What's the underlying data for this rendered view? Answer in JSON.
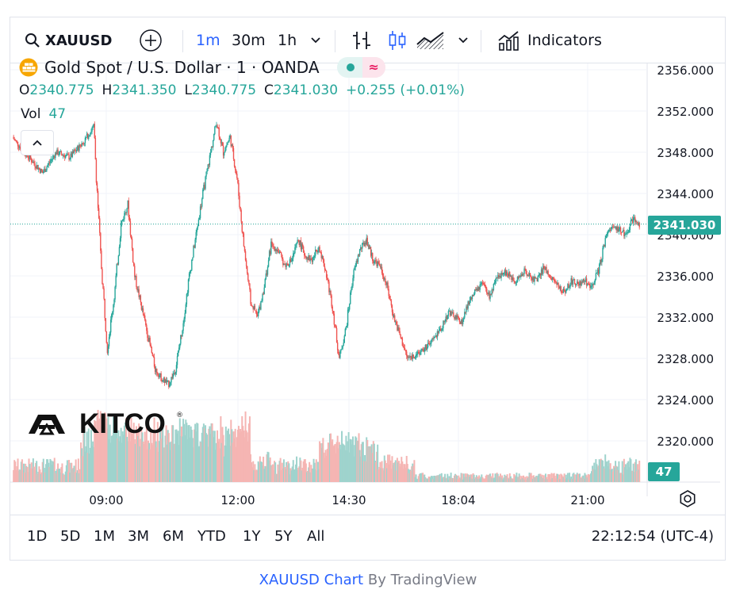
{
  "toolbar": {
    "symbol": "XAUUSD",
    "intervals": [
      "1m",
      "30m",
      "1h"
    ],
    "active_interval": "1m",
    "indicators_label": "Indicators"
  },
  "legend": {
    "title": "Gold Spot / U.S. Dollar · 1 · OANDA",
    "o_label": "O",
    "o_value": "2340.775",
    "h_label": "H",
    "h_value": "2341.350",
    "l_label": "L",
    "l_value": "2340.775",
    "c_label": "C",
    "c_value": "2341.030",
    "change": "+0.255 (+0.01%)",
    "vol_label": "Vol",
    "vol_value": "47"
  },
  "watermark": "KITCO",
  "last_price": "2341.030",
  "last_volume": "47",
  "ranges": [
    "1D",
    "5D",
    "1M",
    "3M",
    "6M",
    "YTD",
    "1Y",
    "5Y",
    "All"
  ],
  "clock": "22:12:54 (UTC-4)",
  "footer": {
    "symbol_link": "XAUUSD Chart",
    "by": "By",
    "brand": "TradingView"
  },
  "colors": {
    "up": "#26a69a",
    "down": "#ef5350",
    "accent": "#2962ff",
    "vol_up": "#9fd3cd",
    "vol_down": "#f5b5b3"
  },
  "chart_data": {
    "type": "candlestick",
    "title": "Gold Spot / U.S. Dollar · 1 · OANDA",
    "x_tick_labels": [
      "09:00",
      "12:00",
      "14:30",
      "18:04",
      "21:00"
    ],
    "y_tick_labels": [
      "2356.000",
      "2352.000",
      "2348.000",
      "2344.000",
      "2340.000",
      "2336.000",
      "2332.000",
      "2328.000",
      "2324.000",
      "2320.000"
    ],
    "ylim": [
      2316.0,
      2356.5
    ],
    "price_path": [
      [
        0,
        2349.5
      ],
      [
        10,
        2347.5
      ],
      [
        18,
        2346.0
      ],
      [
        26,
        2348.0
      ],
      [
        34,
        2347.5
      ],
      [
        42,
        2349.0
      ],
      [
        48,
        2350.5
      ],
      [
        52,
        2338.0
      ],
      [
        56,
        2329.0
      ],
      [
        60,
        2334.0
      ],
      [
        64,
        2341.0
      ],
      [
        68,
        2343.0
      ],
      [
        72,
        2336.0
      ],
      [
        76,
        2333.0
      ],
      [
        80,
        2330.0
      ],
      [
        84,
        2327.0
      ],
      [
        88,
        2326.0
      ],
      [
        92,
        2325.5
      ],
      [
        96,
        2327.0
      ],
      [
        100,
        2331.0
      ],
      [
        104,
        2336.0
      ],
      [
        108,
        2340.0
      ],
      [
        112,
        2344.0
      ],
      [
        116,
        2347.5
      ],
      [
        120,
        2351.0
      ],
      [
        124,
        2348.0
      ],
      [
        128,
        2349.5
      ],
      [
        132,
        2345.5
      ],
      [
        136,
        2339.0
      ],
      [
        140,
        2333.5
      ],
      [
        144,
        2332.0
      ],
      [
        148,
        2335.0
      ],
      [
        152,
        2339.0
      ],
      [
        156,
        2338.5
      ],
      [
        160,
        2337.0
      ],
      [
        164,
        2337.5
      ],
      [
        168,
        2339.5
      ],
      [
        172,
        2338.0
      ],
      [
        176,
        2337.5
      ],
      [
        180,
        2339.0
      ],
      [
        184,
        2336.5
      ],
      [
        188,
        2333.0
      ],
      [
        192,
        2328.0
      ],
      [
        196,
        2331.0
      ],
      [
        200,
        2336.0
      ],
      [
        204,
        2338.5
      ],
      [
        208,
        2339.5
      ],
      [
        212,
        2337.5
      ],
      [
        216,
        2337.0
      ],
      [
        220,
        2335.0
      ],
      [
        224,
        2332.0
      ],
      [
        228,
        2330.0
      ],
      [
        232,
        2328.0
      ],
      [
        236,
        2328.3
      ],
      [
        240,
        2328.7
      ],
      [
        244,
        2329.2
      ],
      [
        248,
        2330.0
      ],
      [
        252,
        2331.0
      ],
      [
        256,
        2332.5
      ],
      [
        260,
        2332.0
      ],
      [
        264,
        2331.5
      ],
      [
        268,
        2333.5
      ],
      [
        272,
        2334.5
      ],
      [
        276,
        2335.2
      ],
      [
        280,
        2334.0
      ],
      [
        284,
        2335.5
      ],
      [
        288,
        2336.5
      ],
      [
        292,
        2336.0
      ],
      [
        296,
        2335.5
      ],
      [
        300,
        2336.5
      ],
      [
        304,
        2336.0
      ],
      [
        308,
        2335.5
      ],
      [
        312,
        2336.8
      ],
      [
        316,
        2336.0
      ],
      [
        320,
        2335.0
      ],
      [
        324,
        2334.5
      ],
      [
        328,
        2335.5
      ],
      [
        332,
        2335.2
      ],
      [
        336,
        2335.5
      ],
      [
        340,
        2335.0
      ],
      [
        344,
        2336.5
      ],
      [
        348,
        2339.5
      ],
      [
        352,
        2341.0
      ],
      [
        356,
        2340.5
      ],
      [
        360,
        2340.0
      ],
      [
        364,
        2341.5
      ],
      [
        368,
        2341.03
      ]
    ]
  }
}
